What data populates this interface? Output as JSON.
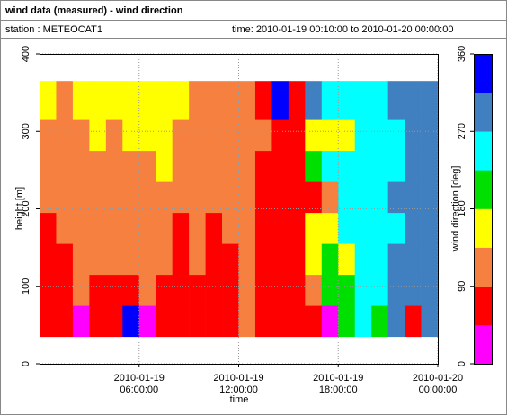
{
  "header": {
    "title": "wind data (measured) - wind direction",
    "station": "station : METEOCAT1",
    "time": "time: 2010-01-19 00:10:00 to 2010-01-20 00:00:00"
  },
  "chart_data": {
    "type": "heatmap",
    "xlabel": "time",
    "ylabel": "height [m]",
    "zlabel": "wind direction [deg]",
    "xlim": [
      "2010-01-19 00:00:00",
      "2010-01-20 00:00:00"
    ],
    "xticks": [
      "2010-01-19 06:00:00",
      "2010-01-19 12:00:00",
      "2010-01-19 18:00:00",
      "2010-01-20 00:00:00"
    ],
    "ylim": [
      0,
      400
    ],
    "yticks": [
      0,
      100,
      200,
      300,
      400
    ],
    "clim": [
      0,
      360
    ],
    "zticks": [
      0,
      90,
      180,
      270,
      360
    ],
    "colors": [
      "#ff00ff",
      "#ff0000",
      "#f58040",
      "#ffff00",
      "#00e000",
      "#00ffff",
      "#4080c0",
      "#0000ff"
    ],
    "grid": true,
    "x_edges": [
      "2010-01-19 00:00:00",
      "2010-01-19 01:00:00",
      "2010-01-19 02:00:00",
      "2010-01-19 03:00:00",
      "2010-01-19 04:00:00",
      "2010-01-19 05:00:00",
      "2010-01-19 06:00:00",
      "2010-01-19 07:00:00",
      "2010-01-19 08:00:00",
      "2010-01-19 09:00:00",
      "2010-01-19 10:00:00",
      "2010-01-19 11:00:00",
      "2010-01-19 12:00:00",
      "2010-01-19 13:00:00",
      "2010-01-19 14:00:00",
      "2010-01-19 15:00:00",
      "2010-01-19 16:00:00",
      "2010-01-19 17:00:00",
      "2010-01-19 18:00:00",
      "2010-01-19 19:00:00",
      "2010-01-19 20:00:00",
      "2010-01-19 21:00:00",
      "2010-01-19 22:00:00",
      "2010-01-19 23:00:00",
      "2010-01-20 00:00:00"
    ],
    "y_edges": [
      35,
      75,
      115,
      155,
      195,
      235,
      275,
      315,
      365
    ],
    "z": [
      [
        70,
        70,
        70,
        70,
        110,
        110,
        110,
        160
      ],
      [
        70,
        70,
        70,
        110,
        110,
        110,
        110,
        110
      ],
      [
        20,
        110,
        110,
        110,
        110,
        110,
        110,
        160
      ],
      [
        70,
        70,
        110,
        110,
        110,
        110,
        160,
        160
      ],
      [
        70,
        70,
        110,
        110,
        110,
        110,
        110,
        160
      ],
      [
        340,
        70,
        110,
        110,
        110,
        110,
        160,
        160
      ],
      [
        20,
        110,
        110,
        110,
        110,
        110,
        160,
        160
      ],
      [
        70,
        70,
        110,
        110,
        110,
        160,
        160,
        160
      ],
      [
        70,
        70,
        70,
        70,
        110,
        110,
        110,
        160
      ],
      [
        70,
        70,
        110,
        110,
        110,
        110,
        110,
        110
      ],
      [
        70,
        70,
        70,
        70,
        110,
        110,
        110,
        110
      ],
      [
        70,
        70,
        70,
        110,
        110,
        110,
        110,
        110
      ],
      [
        110,
        110,
        110,
        110,
        110,
        110,
        110,
        110
      ],
      [
        70,
        70,
        70,
        70,
        70,
        70,
        110,
        70
      ],
      [
        70,
        70,
        70,
        70,
        70,
        70,
        70,
        330
      ],
      [
        70,
        70,
        70,
        70,
        70,
        70,
        70,
        70
      ],
      [
        70,
        110,
        170,
        160,
        70,
        200,
        160,
        300
      ],
      [
        20,
        200,
        200,
        160,
        110,
        250,
        160,
        250
      ],
      [
        200,
        200,
        160,
        250,
        250,
        250,
        160,
        250
      ],
      [
        250,
        250,
        250,
        250,
        250,
        250,
        250,
        250
      ],
      [
        200,
        250,
        250,
        250,
        250,
        250,
        250,
        250
      ],
      [
        290,
        290,
        290,
        250,
        290,
        250,
        250,
        290
      ],
      [
        70,
        290,
        290,
        290,
        290,
        290,
        290,
        290
      ],
      [
        290,
        290,
        290,
        290,
        290,
        290,
        290,
        290
      ]
    ]
  }
}
